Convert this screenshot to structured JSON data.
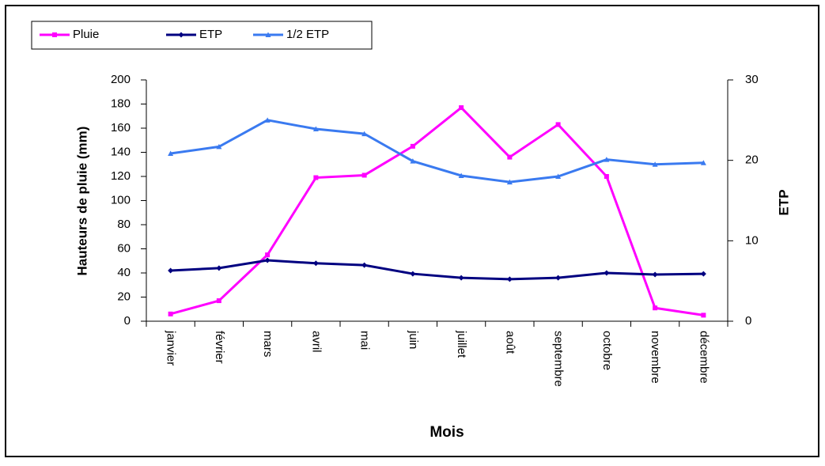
{
  "chart_data": {
    "type": "line",
    "categories": [
      "janvier",
      "février",
      "mars",
      "avril",
      "mai",
      "juin",
      "juillet",
      "août",
      "septembre",
      "octobre",
      "novembre",
      "décembre"
    ],
    "series": [
      {
        "name": "Pluie",
        "color": "#ff00ff",
        "marker": "square",
        "axis": "y",
        "values": [
          6,
          17,
          55,
          119,
          121,
          145,
          177,
          136,
          163,
          120,
          11,
          5
        ]
      },
      {
        "name": "ETP",
        "color": "#000080",
        "marker": "diamond",
        "axis": "y",
        "values": [
          42,
          44,
          50.5,
          48,
          46.5,
          39.3,
          36,
          34.8,
          36,
          40,
          38.7,
          39.3
        ]
      },
      {
        "name": "1/2 ETP",
        "color": "#3a7af0",
        "marker": "triangle",
        "axis": "y2",
        "values": [
          20.85,
          21.7,
          25,
          23.9,
          23.3,
          19.9,
          18.1,
          17.3,
          18,
          20.1,
          19.5,
          19.7
        ]
      }
    ],
    "ylim": [
      0,
      200
    ],
    "yticks": [
      0,
      20,
      40,
      60,
      80,
      100,
      120,
      140,
      160,
      180,
      200
    ],
    "y2lim": [
      0,
      30
    ],
    "y2ticks": [
      0,
      10,
      20,
      30
    ],
    "y_label": "Hauteurs de pluie (mm)",
    "y2_label": "ETP",
    "x_label": "Mois",
    "grid": false,
    "legend_position": "top-left"
  }
}
